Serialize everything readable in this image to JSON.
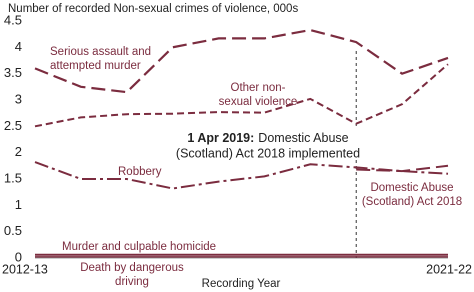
{
  "chart_data": {
    "type": "line",
    "y_axis_title": "Number of recorded Non-sexual crimes of violence, 000s",
    "x_axis_title": "Recording Year",
    "categories": [
      "2012-13",
      null,
      null,
      null,
      null,
      null,
      null,
      null,
      null,
      "2021-22"
    ],
    "ylim": [
      0,
      4.5
    ],
    "yticks": [
      0,
      0.5,
      1,
      1.5,
      2,
      2.5,
      3,
      3.5,
      4,
      4.5
    ],
    "grid": false,
    "series": [
      {
        "name": [
          "Serious assault and",
          "attempted murder"
        ],
        "color": "#7b2c3f",
        "values": [
          3.6,
          3.25,
          3.15,
          4.0,
          4.17,
          4.17,
          4.33,
          4.1,
          3.5,
          3.8
        ]
      },
      {
        "name": [
          "Other non-",
          "sexual violence"
        ],
        "color": "#7b2c3f",
        "values": [
          2.5,
          2.67,
          2.73,
          2.74,
          2.77,
          2.76,
          3.02,
          2.55,
          2.92,
          3.68
        ]
      },
      {
        "name": [
          "Robbery"
        ],
        "color": "#7b2c3f",
        "values": [
          1.82,
          1.5,
          1.5,
          1.32,
          1.45,
          1.55,
          1.78,
          1.72,
          1.65,
          1.6
        ]
      },
      {
        "name": [
          "Domestic Abuse",
          "(Scotland) Act 2018"
        ],
        "color": "#7b2c3f",
        "values": [
          null,
          null,
          null,
          null,
          null,
          null,
          null,
          1.68,
          1.65,
          1.75
        ]
      },
      {
        "name": [
          "Murder and culpable homicide"
        ],
        "color": "#7b2c3f",
        "values": [
          0.06,
          0.06,
          0.06,
          0.06,
          0.06,
          0.06,
          0.06,
          0.06,
          0.06,
          0.06
        ]
      },
      {
        "name": [
          "Death by dangerous",
          "driving"
        ],
        "color": "#7b2c3f",
        "values": [
          0.02,
          0.02,
          0.02,
          0.02,
          0.02,
          0.02,
          0.02,
          0.02,
          0.02,
          0.02
        ]
      }
    ],
    "annotation": {
      "bold": "1 Apr 2019:",
      "lines": [
        "Domestic Abuse",
        "(Scotland) Act 2018 implemented"
      ],
      "category": "2019-20"
    }
  }
}
